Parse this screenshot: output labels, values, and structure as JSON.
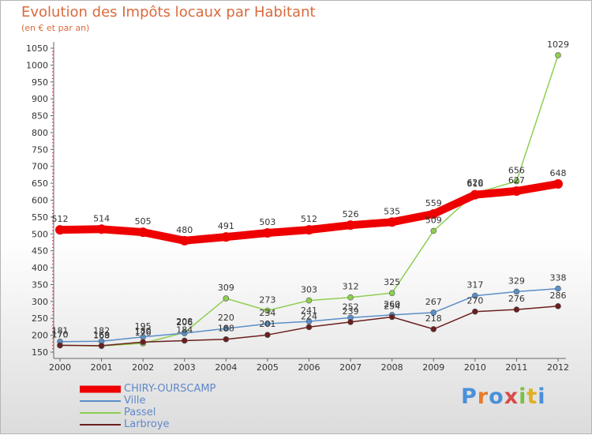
{
  "title": "Evolution des Impôts locaux par Habitant",
  "subtitle": "(en € et par an)",
  "logo_text": "Proxiti",
  "chart_data": {
    "type": "line",
    "title": "Evolution des Impôts locaux par Habitant",
    "ylabel": "(en € et par an)",
    "xlabel": "",
    "x": [
      "2000",
      "2001",
      "2002",
      "2003",
      "2004",
      "2005",
      "2006",
      "2007",
      "2008",
      "2009",
      "2010",
      "2011",
      "2012"
    ],
    "ylim": [
      150,
      1050
    ],
    "yticks": [
      "150",
      "200",
      "250",
      "300",
      "350",
      "400",
      "450",
      "500",
      "550",
      "600",
      "650",
      "700",
      "750",
      "800",
      "850",
      "900",
      "950",
      "1000",
      "1050"
    ],
    "grid": false,
    "legend_position": "bottom-left",
    "series": [
      {
        "name": "CHIRY-OURSCAMP",
        "color": "#ee0000",
        "values": [
          512,
          514,
          505,
          480,
          491,
          503,
          512,
          526,
          535,
          559,
          616,
          627,
          648
        ],
        "labels": [
          "512",
          "514",
          "505",
          "480",
          "491",
          "503",
          "512",
          "526",
          "535",
          "559",
          "616",
          "627",
          "648"
        ]
      },
      {
        "name": "Ville",
        "color": "#5b8ec8",
        "values": [
          181,
          182,
          195,
          206,
          220,
          234,
          241,
          252,
          260,
          267,
          317,
          329,
          338
        ],
        "labels": [
          "181",
          "182",
          "195",
          "206",
          "220",
          "234",
          "241",
          "252",
          "260",
          "267",
          "317",
          "329",
          "338"
        ]
      },
      {
        "name": "Passel",
        "color": "#8fce50",
        "values": [
          170,
          168,
          176,
          208,
          309,
          273,
          303,
          312,
          325,
          509,
          620,
          656,
          1029
        ],
        "labels": [
          "170",
          "168",
          "176",
          "208",
          "309",
          "273",
          "303",
          "312",
          "325",
          "509",
          "620",
          "656",
          "1029"
        ]
      },
      {
        "name": "Larbroye",
        "color": "#6b1f1f",
        "values": [
          170,
          169,
          180,
          184,
          188,
          201,
          224,
          239,
          254,
          218,
          270,
          276,
          286
        ],
        "labels": [
          "170",
          "169",
          "180",
          "184",
          "188",
          "201",
          "224",
          "239",
          "254",
          "218",
          "270",
          "276",
          "286"
        ]
      }
    ]
  }
}
